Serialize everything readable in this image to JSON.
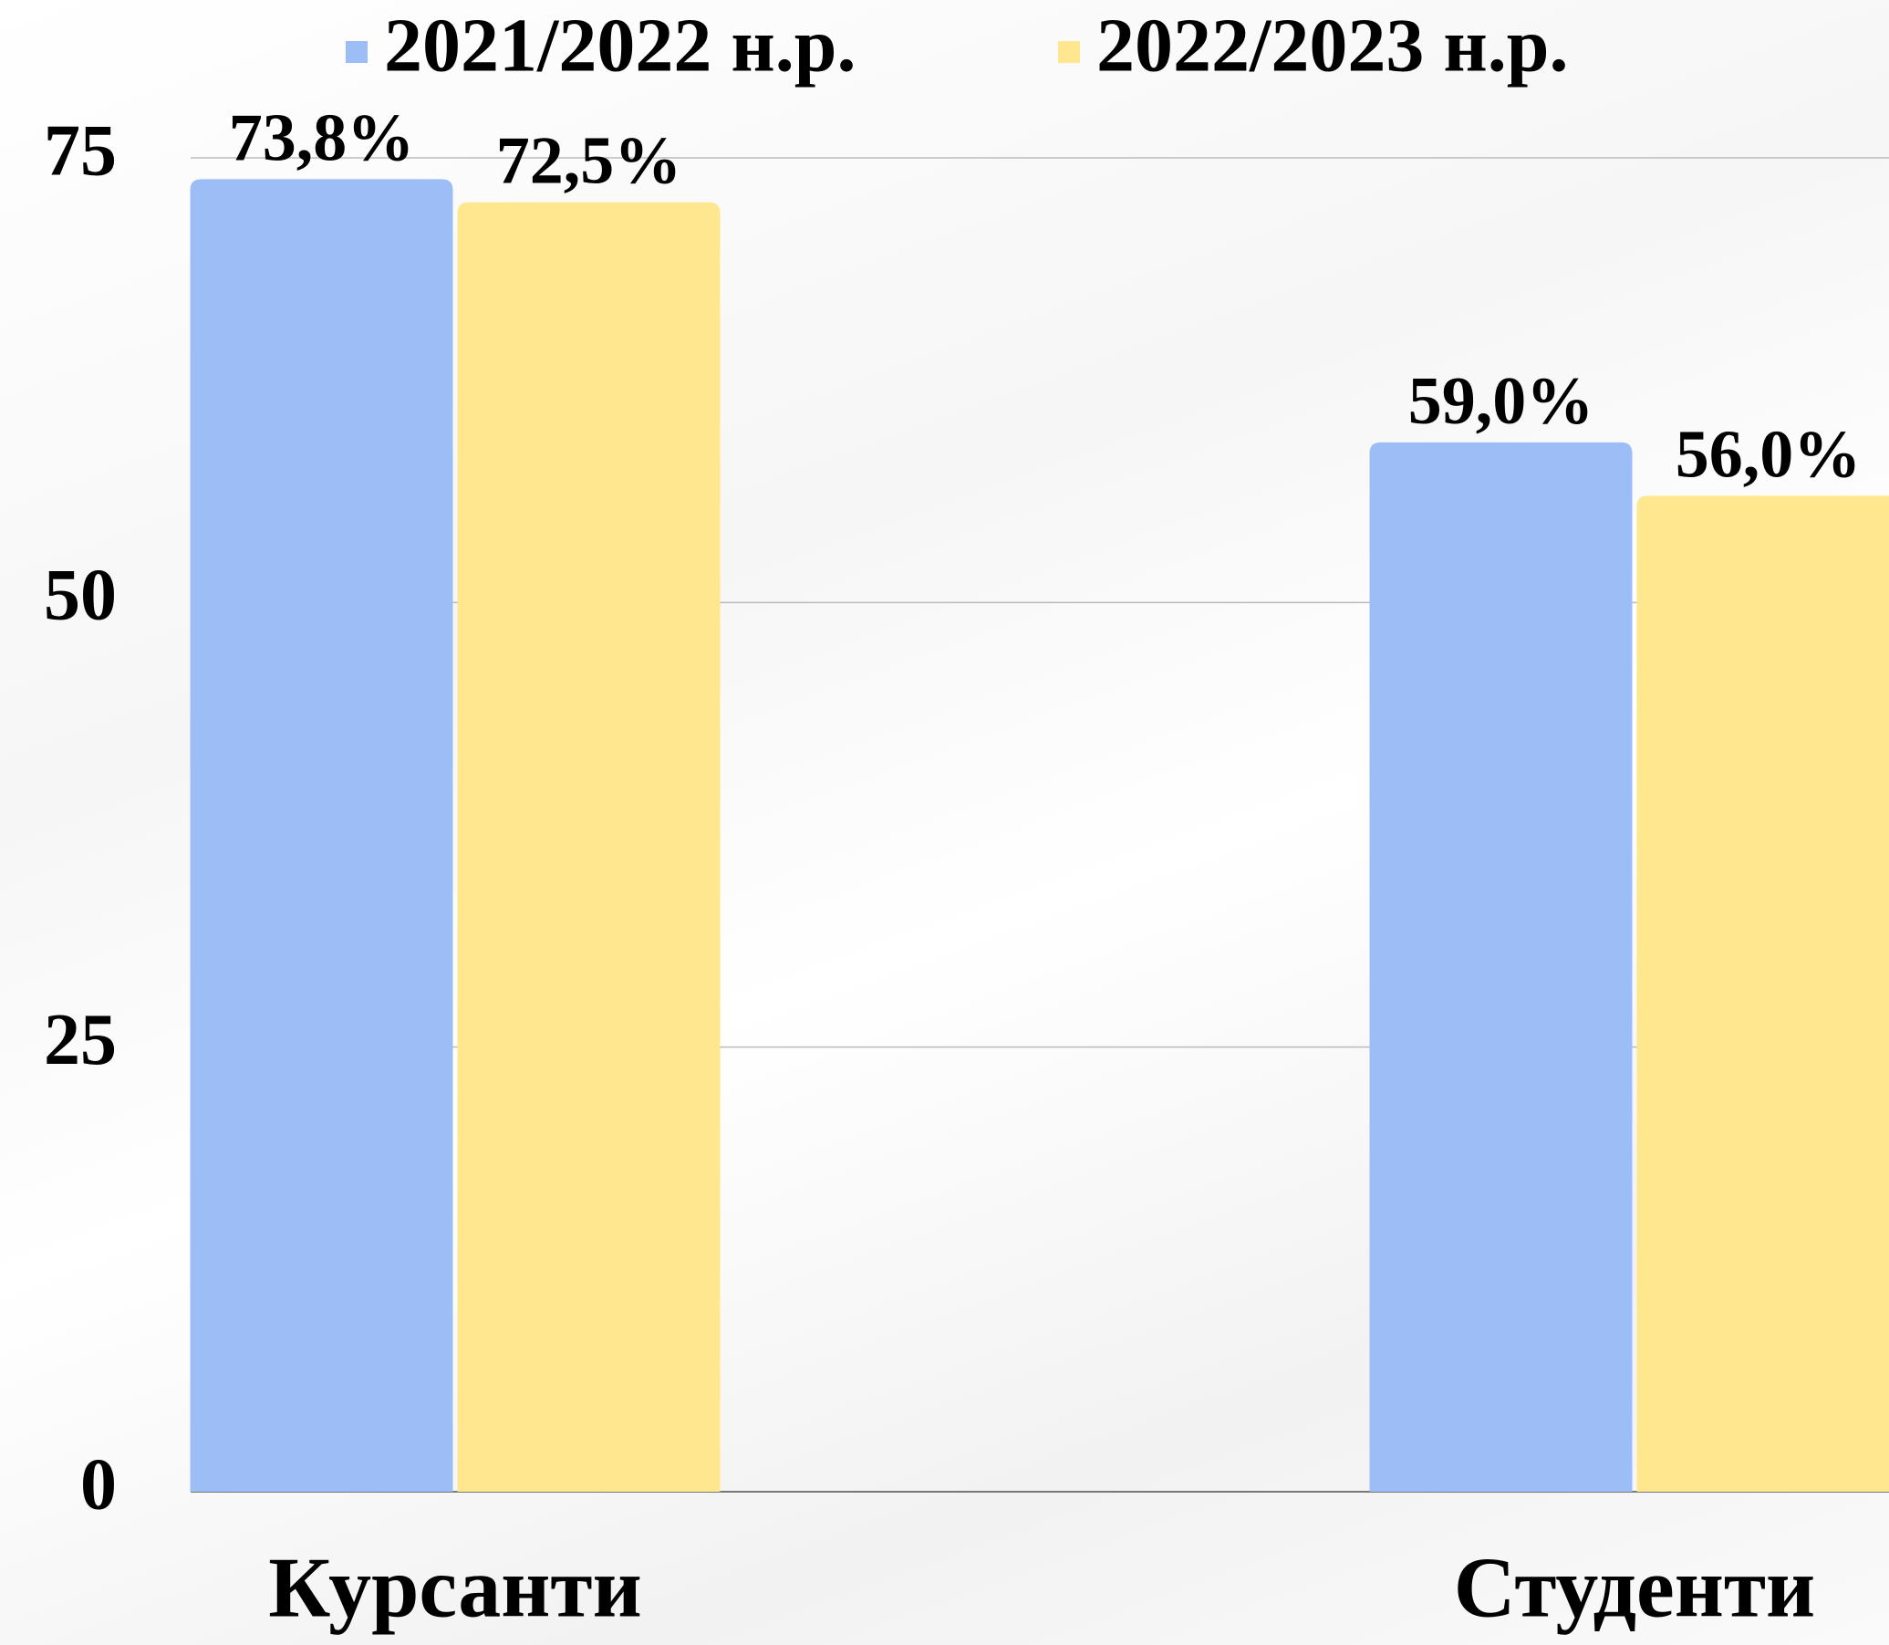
{
  "chart_data": {
    "type": "bar",
    "categories": [
      "Курсанти",
      "Студенти"
    ],
    "series": [
      {
        "name": "2021/2022 н.р.",
        "color": "#9dbdf7",
        "values": [
          73.8,
          59.0
        ],
        "value_labels": [
          "73,8%",
          "59,0%"
        ]
      },
      {
        "name": "2022/2023 н.р.",
        "color": "#fee78f",
        "values": [
          72.5,
          56.0
        ],
        "value_labels": [
          "72,5%",
          "56,0%"
        ]
      }
    ],
    "ylim": [
      0,
      75
    ],
    "yticks": [
      0,
      25,
      50,
      75
    ],
    "grid": true,
    "legend": "top"
  }
}
